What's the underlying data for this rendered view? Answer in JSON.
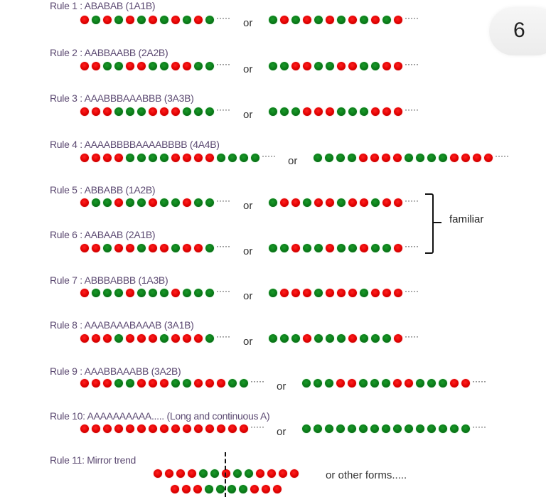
{
  "page_number": "6",
  "legend": {
    "R": "red dot (A)",
    "G": "green dot (B)",
    "colors": {
      "red": "#e00000",
      "green": "#0a7a18",
      "label": "#5c4a72"
    }
  },
  "or_label": "or",
  "continuation": "·····",
  "bracket_label": "familiar",
  "rules": [
    {
      "label": "Rule 1 : ABABAB (1A1B)",
      "seq_a": "RGRGRGRGRGRG",
      "seq_b": "GRGRGRGRGRGR"
    },
    {
      "label": "Rule 2 : AABBAABB (2A2B)",
      "seq_a": "RRGGRRGGRRGG",
      "seq_b": "GGRRGGRRGGRR"
    },
    {
      "label": "Rule 3 : AAABBBAAABBB (3A3B)",
      "seq_a": "RRRGGGRRRGGG",
      "seq_b": "GGGRRRGGGRRR"
    },
    {
      "label": "Rule 4 : AAAABBBBAAAABBBB (4A4B)",
      "seq_a": "RRRRGGGGRRRRGGGG",
      "seq_b": "GGGGRRRRGGGGRRRR"
    },
    {
      "label": "Rule 5 : ABBABB (1A2B)",
      "seq_a": "RGGRGGRGGRGG",
      "seq_b": "GRRGRRGRRGRR"
    },
    {
      "label": "Rule 6 : AABAAB (2A1B)",
      "seq_a": "RRGRRGRRGRRG",
      "seq_b": "GGRGGRGGRGGR"
    },
    {
      "label": "Rule 7 : ABBBABBB (1A3B)",
      "seq_a": "RGGGRGGGRGGG",
      "seq_b": "GRRRGRRRGRRR"
    },
    {
      "label": "Rule 8 : AAABAAABAAAB (3A1B)",
      "seq_a": "RRRGRRRGRRRG",
      "seq_b": "GGGRGGGRGGGR"
    },
    {
      "label": "Rule 9 : AAABBAAABB (3A2B)",
      "seq_a": "RRRGGRRRGGRRRGG",
      "seq_b": "GGGRRGGGRRGGGRR"
    },
    {
      "label": "Rule 10: AAAAAAAAAA..... (Long and continuous A)",
      "seq_a": "RRRRRRRRRRRRRRR",
      "seq_b": "GGGGGGGGGGGGGGG"
    }
  ],
  "mirror": {
    "label": "Rule 11: Mirror trend",
    "row1": "RRRRGGRGGRRRR",
    "row2": "RRRGGGGRRR",
    "other_forms": "or other forms....."
  }
}
